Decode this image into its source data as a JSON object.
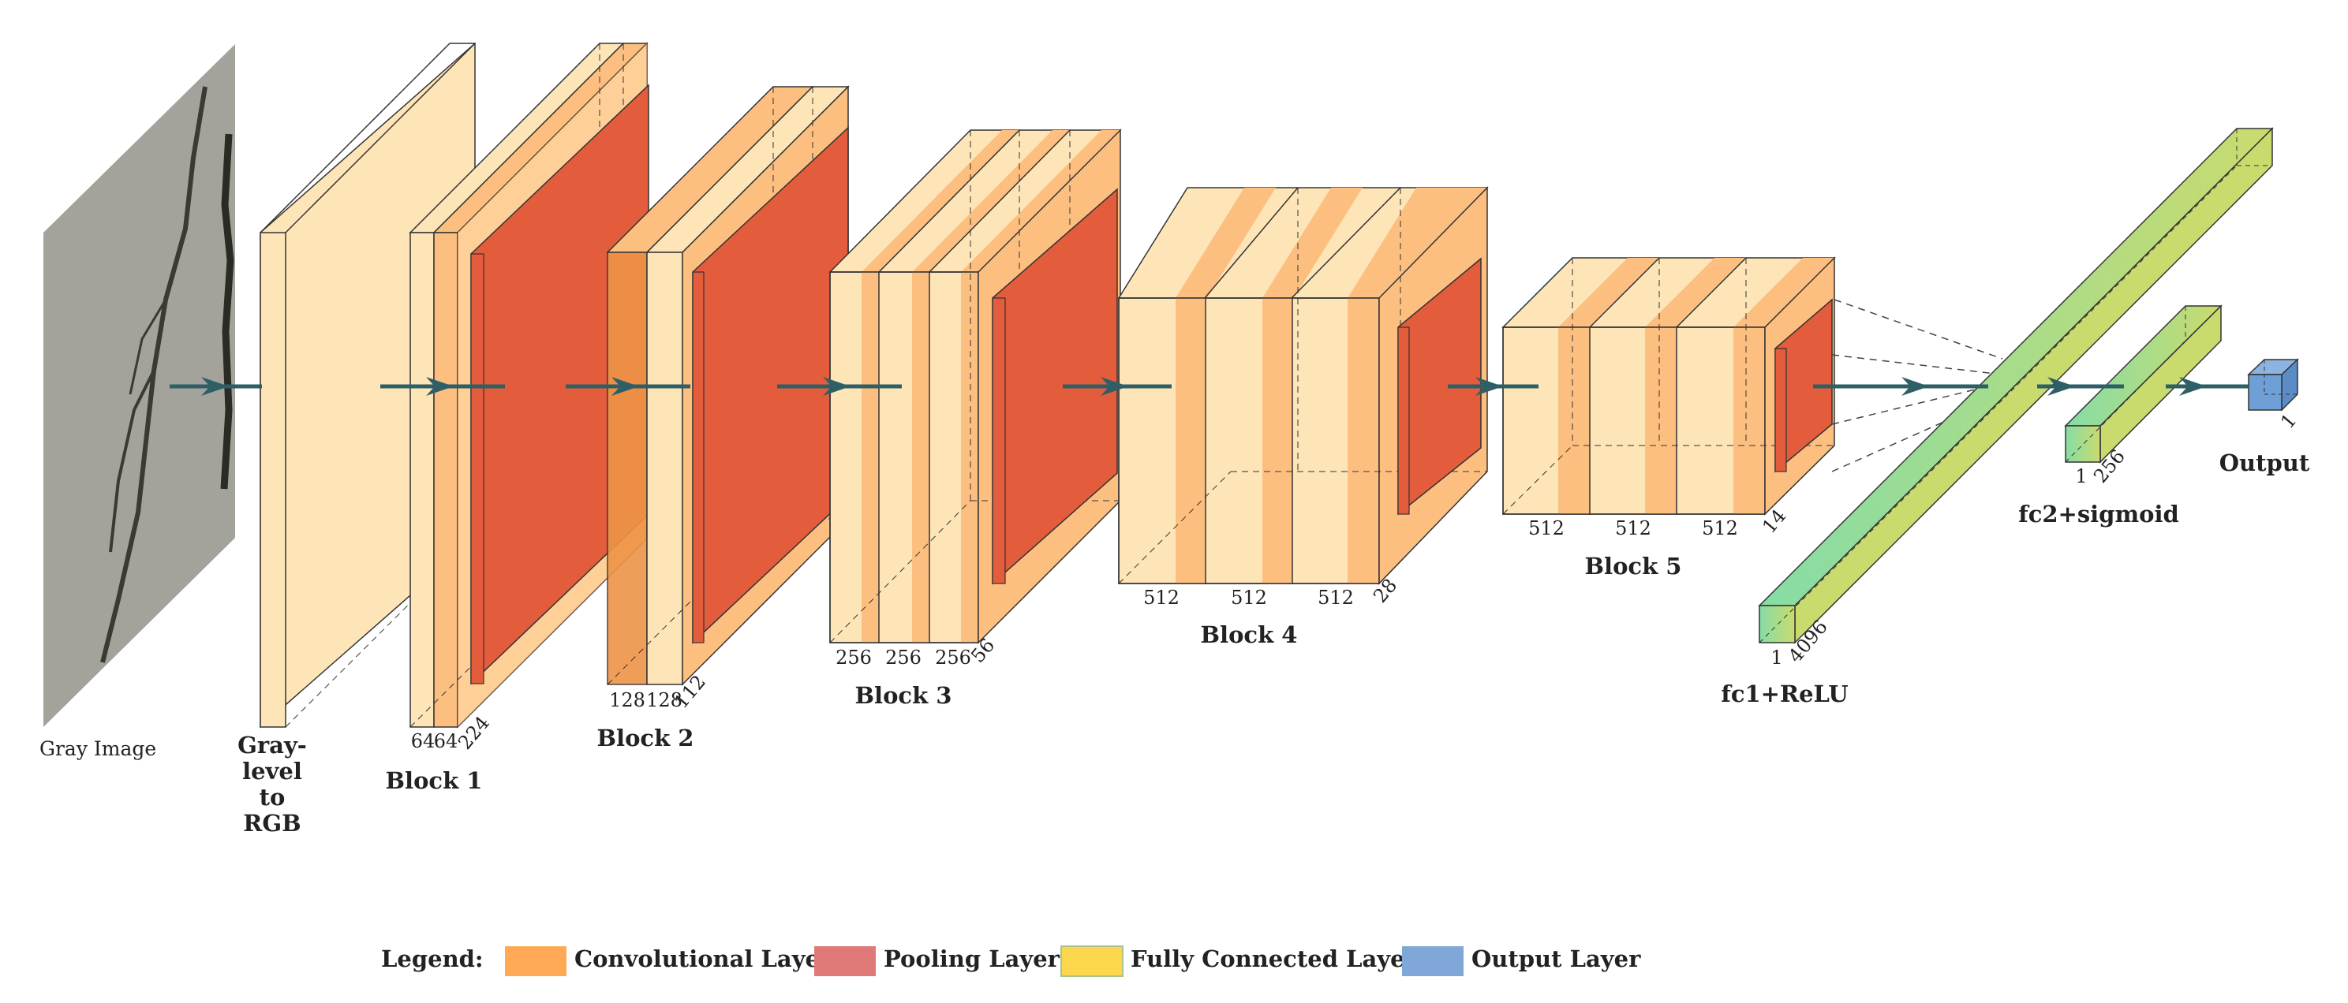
{
  "input": {
    "label": "Gray Image"
  },
  "gray2rgb": {
    "label_lines": [
      "Gray-",
      "level",
      "to",
      "RGB"
    ]
  },
  "blocks": [
    {
      "name": "Block 1",
      "conv_channels": [
        "64",
        "64"
      ],
      "spatial": "224"
    },
    {
      "name": "Block 2",
      "conv_channels": [
        "128",
        "128"
      ],
      "spatial": "112"
    },
    {
      "name": "Block 3",
      "conv_channels": [
        "256",
        "256",
        "256"
      ],
      "spatial": "56"
    },
    {
      "name": "Block 4",
      "conv_channels": [
        "512",
        "512",
        "512"
      ],
      "spatial": "28"
    },
    {
      "name": "Block 5",
      "conv_channels": [
        "512",
        "512",
        "512"
      ],
      "spatial": "14"
    }
  ],
  "fc1": {
    "name": "fc1+ReLU",
    "width": "1",
    "depth": "4096"
  },
  "fc2": {
    "name": "fc2+sigmoid",
    "width": "1",
    "depth": "256"
  },
  "output": {
    "name": "Output",
    "size": "1"
  },
  "legend": {
    "title": "Legend:",
    "items": [
      {
        "label": "Convolutional Layer",
        "color": "#FFA954"
      },
      {
        "label": "Pooling Layer",
        "color": "#E07A78"
      },
      {
        "label": "Fully Connected Layer",
        "color": "#FCD74E"
      },
      {
        "label": "Output Layer",
        "color": "#7FA8D8"
      }
    ]
  },
  "colors": {
    "conv_light": "#FEE5B8",
    "conv_band": "#FDBF80",
    "pool": "#E35C3B",
    "fc_green": "#86DCA6",
    "fc_yellow": "#CADB6E",
    "output": "#6E9FD6",
    "arrow": "#2F5F66",
    "crack_bg": "#A3A29B"
  }
}
